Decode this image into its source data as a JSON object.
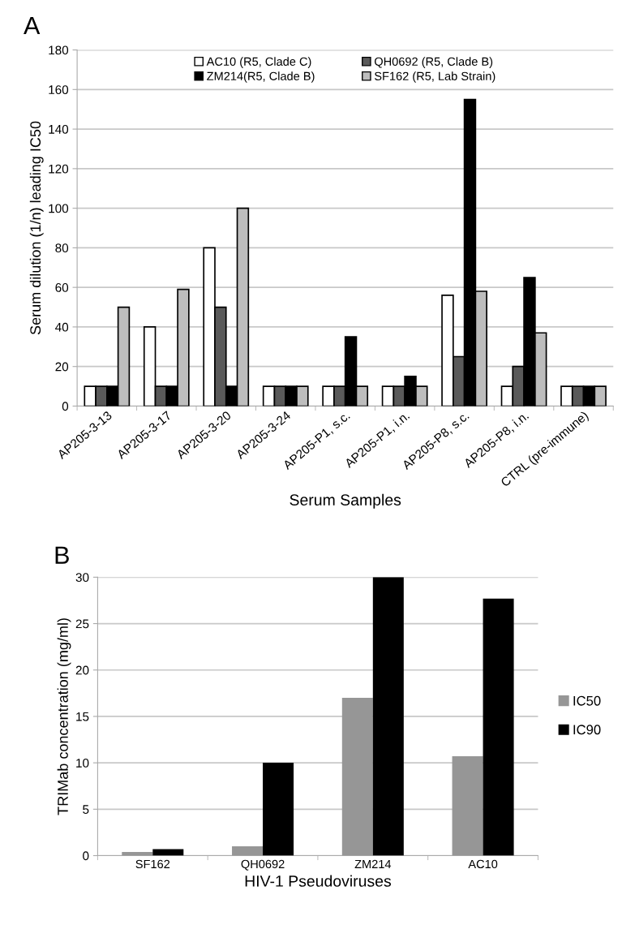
{
  "chart_data": [
    {
      "type": "bar",
      "annotations": [
        "A"
      ],
      "xlabel": "Serum Samples",
      "ylabel": "Serum dilution (1/n) leading IC50",
      "categories": [
        "AP205-3-13",
        "AP205-3-17",
        "AP205-3-20",
        "AP205-3-24",
        "AP205-P1, s.c.",
        "AP205-P1, i.n.",
        "AP205-P8, s.c.",
        "AP205-P8, i.n.",
        "CTRL (pre-immune)"
      ],
      "series": [
        {
          "name": "AC10 (R5, Clade C)",
          "color": "#ffffff",
          "values": [
            10,
            40,
            80,
            10,
            10,
            10,
            56,
            10,
            10
          ]
        },
        {
          "name": "QH0692 (R5, Clade B)",
          "color": "#5a5a5a",
          "values": [
            10,
            10,
            50,
            10,
            10,
            10,
            25,
            20,
            10
          ]
        },
        {
          "name": "ZM214(R5, Clade B)",
          "color": "#000000",
          "values": [
            10,
            10,
            10,
            10,
            35,
            15,
            155,
            65,
            10
          ]
        },
        {
          "name": "SF162 (R5, Lab Strain)",
          "color": "#bdbdbd",
          "values": [
            50,
            59,
            100,
            10,
            10,
            10,
            58,
            37,
            10
          ]
        }
      ],
      "ylim": [
        0,
        180
      ],
      "yticks": [
        0,
        20,
        40,
        60,
        80,
        100,
        120,
        140,
        160,
        180
      ],
      "grid": "y",
      "legend": "top"
    },
    {
      "type": "bar",
      "annotations": [
        "B"
      ],
      "xlabel": "HIV-1 Pseudoviruses",
      "ylabel": "TRIMab concentration (mg/ml)",
      "categories": [
        "SF162",
        "QH0692",
        "ZM214",
        "AC10"
      ],
      "series": [
        {
          "name": "IC50",
          "color": "#969696",
          "values": [
            0.4,
            1.0,
            17,
            10.7
          ]
        },
        {
          "name": "IC90",
          "color": "#000000",
          "values": [
            0.7,
            10,
            30,
            27.7
          ]
        }
      ],
      "ylim": [
        0,
        30
      ],
      "yticks": [
        0,
        5,
        10,
        15,
        20,
        25,
        30
      ],
      "grid": "y",
      "legend": "right"
    }
  ]
}
